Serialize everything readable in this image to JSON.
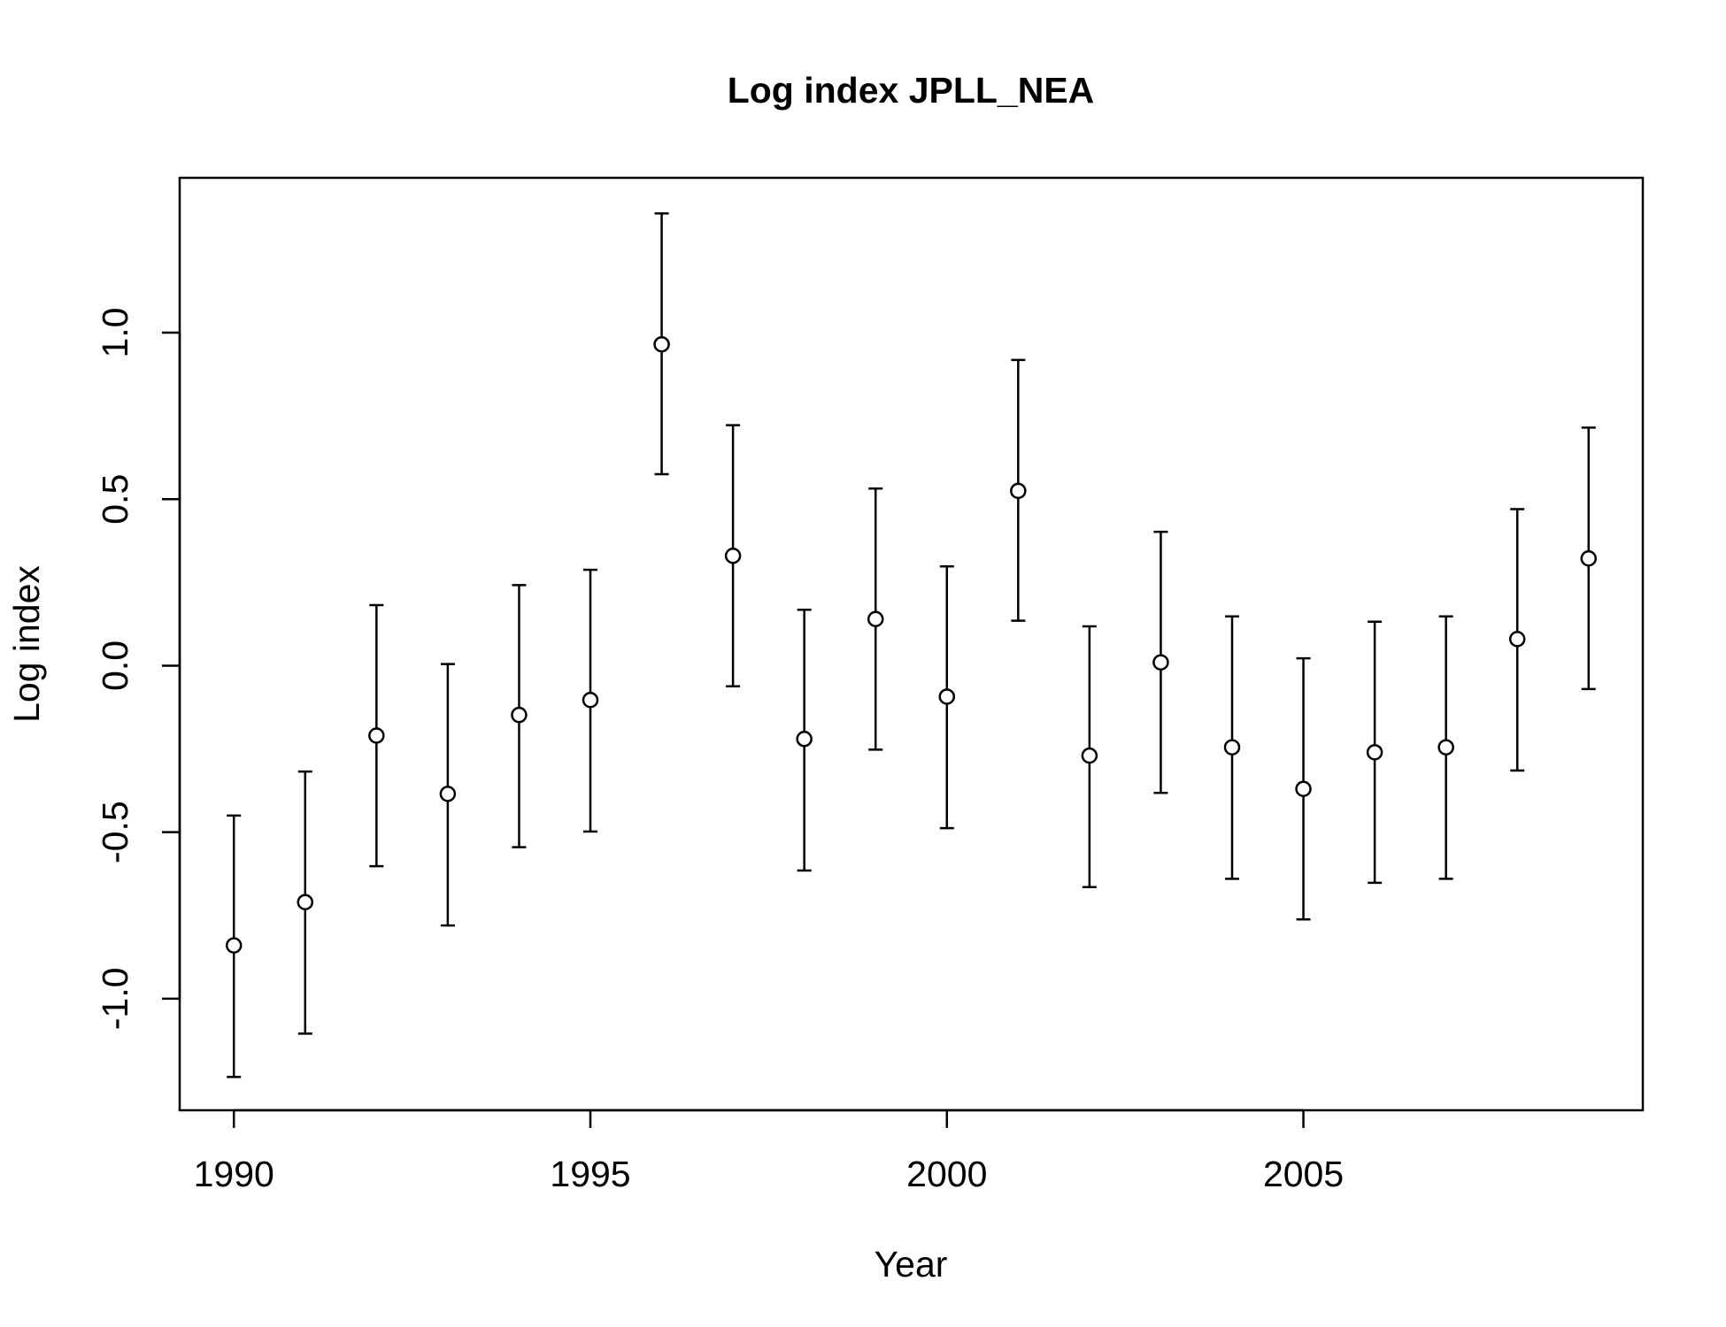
{
  "chart_data": {
    "type": "scatter",
    "title": "Log index JPLL_NEA",
    "xlabel": "Year",
    "ylabel": "Log index",
    "x_ticks": [
      1990,
      1995,
      2000,
      2005
    ],
    "x_tick_labels": [
      "1990",
      "1995",
      "2000",
      "2005"
    ],
    "y_ticks": [
      -1.0,
      -0.5,
      0.0,
      0.5,
      1.0
    ],
    "y_tick_labels": [
      "-1.0",
      "-0.5",
      "0.0",
      "0.5",
      "1.0"
    ],
    "xlim": [
      1989.24,
      2009.76
    ],
    "ylim": [
      -1.335,
      1.465
    ],
    "grid": false,
    "error_bars": true,
    "series": [
      {
        "x": [
          1990,
          1991,
          1992,
          1993,
          1994,
          1995,
          1996,
          1997,
          1998,
          1999,
          2000,
          2001,
          2002,
          2003,
          2004,
          2005,
          2006,
          2007,
          2008,
          2009
        ],
        "y": [
          -0.84,
          -0.71,
          -0.21,
          -0.385,
          -0.148,
          -0.103,
          0.965,
          0.33,
          -0.22,
          0.14,
          -0.093,
          0.525,
          -0.27,
          0.01,
          -0.245,
          -0.37,
          -0.26,
          -0.245,
          0.08,
          0.322
        ],
        "lower": [
          -1.235,
          -1.105,
          -0.602,
          -0.78,
          -0.545,
          -0.498,
          0.575,
          -0.062,
          -0.615,
          -0.252,
          -0.488,
          0.135,
          -0.665,
          -0.382,
          -0.64,
          -0.762,
          -0.652,
          -0.64,
          -0.315,
          -0.07
        ],
        "upper": [
          -0.45,
          -0.318,
          0.182,
          0.005,
          0.242,
          0.288,
          1.358,
          0.722,
          0.168,
          0.532,
          0.298,
          0.918,
          0.118,
          0.402,
          0.148,
          0.022,
          0.132,
          0.148,
          0.47,
          0.715
        ]
      }
    ]
  }
}
